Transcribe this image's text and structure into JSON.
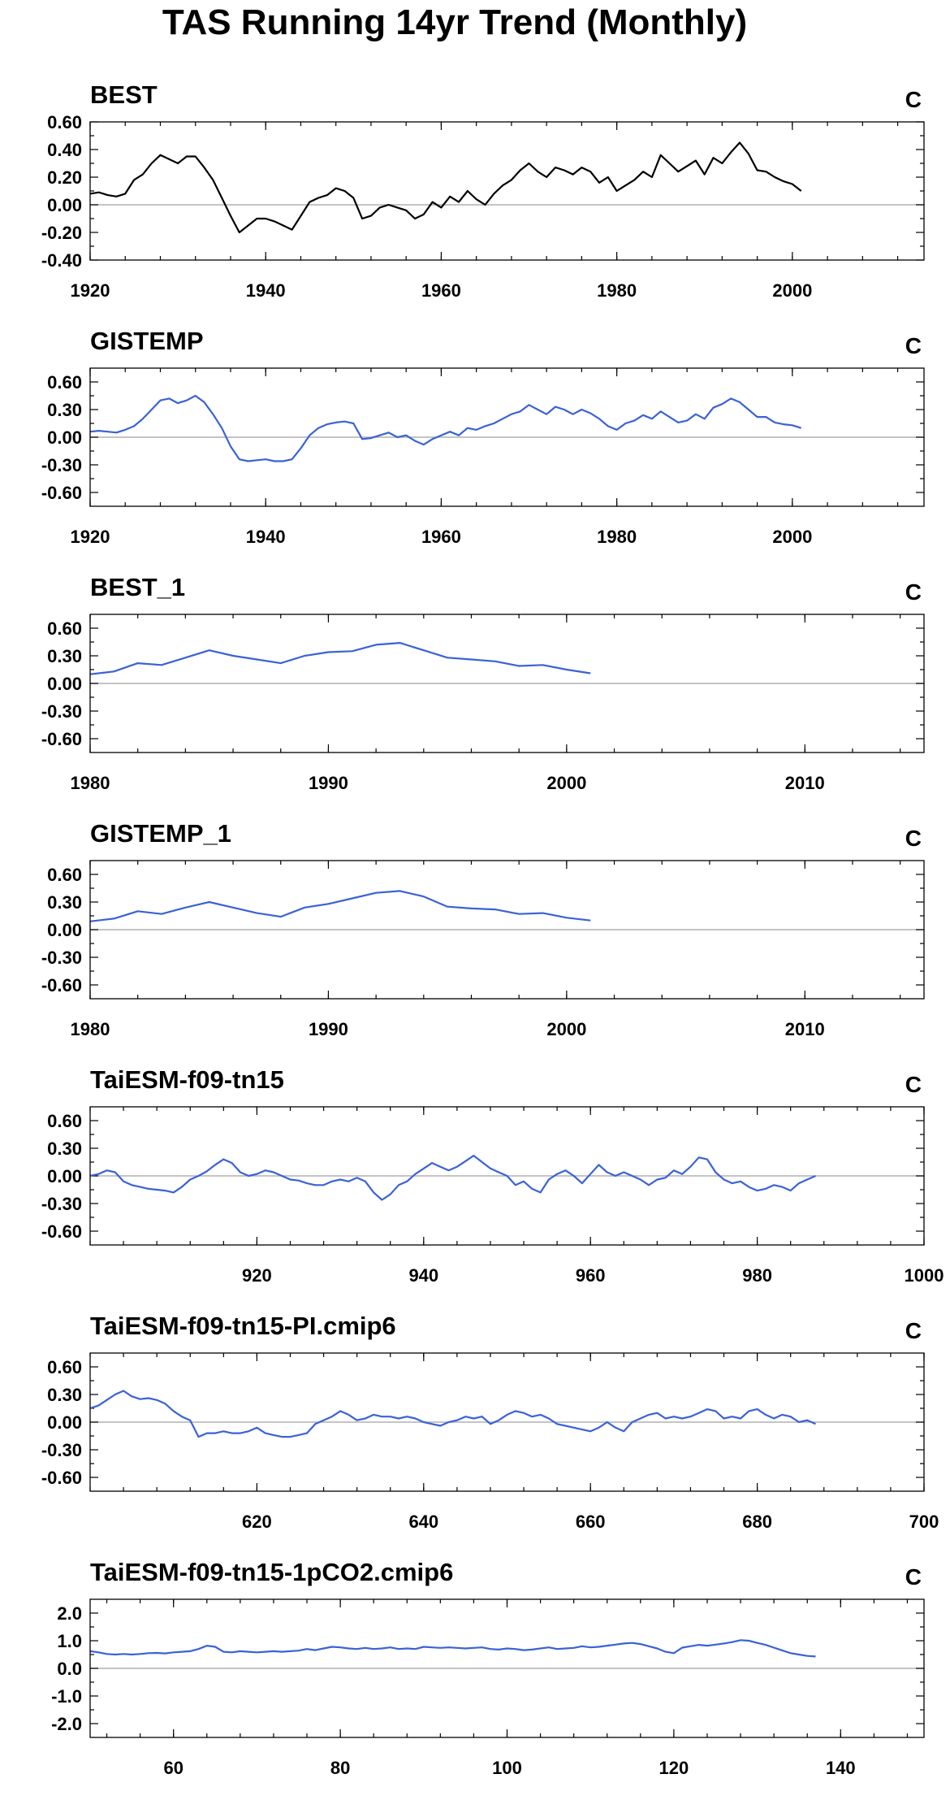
{
  "figure": {
    "title": "TAS Running 14yr Trend (Monthly)"
  },
  "chart_data": [
    {
      "type": "line",
      "title": "BEST",
      "units": "C",
      "color": "#000000",
      "xlim": [
        1920,
        2015
      ],
      "xticks": [
        1920,
        1940,
        1960,
        1980,
        2000
      ],
      "ylim": [
        -0.4,
        0.6
      ],
      "yticks": [
        0.6,
        0.4,
        0.2,
        0.0,
        -0.2,
        -0.4
      ],
      "ytick_labels": [
        "0.60",
        "0.40",
        "0.20",
        "0.00",
        "-0.20",
        "-0.40"
      ],
      "x": [
        1920,
        1921,
        1922,
        1923,
        1924,
        1925,
        1926,
        1927,
        1928,
        1929,
        1930,
        1931,
        1932,
        1933,
        1934,
        1935,
        1936,
        1937,
        1938,
        1939,
        1940,
        1941,
        1942,
        1943,
        1944,
        1945,
        1946,
        1947,
        1948,
        1949,
        1950,
        1951,
        1952,
        1953,
        1954,
        1955,
        1956,
        1957,
        1958,
        1959,
        1960,
        1961,
        1962,
        1963,
        1964,
        1965,
        1966,
        1967,
        1968,
        1969,
        1970,
        1971,
        1972,
        1973,
        1974,
        1975,
        1976,
        1977,
        1978,
        1979,
        1980,
        1981,
        1982,
        1983,
        1984,
        1985,
        1986,
        1987,
        1988,
        1989,
        1990,
        1991,
        1992,
        1993,
        1994,
        1995,
        1996,
        1997,
        1998,
        1999,
        2000,
        2001
      ],
      "values": [
        0.08,
        0.09,
        0.07,
        0.06,
        0.08,
        0.18,
        0.22,
        0.3,
        0.36,
        0.33,
        0.3,
        0.35,
        0.35,
        0.27,
        0.18,
        0.05,
        -0.08,
        -0.2,
        -0.15,
        -0.1,
        -0.1,
        -0.12,
        -0.15,
        -0.18,
        -0.08,
        0.02,
        0.05,
        0.07,
        0.12,
        0.1,
        0.05,
        -0.1,
        -0.08,
        -0.02,
        0.0,
        -0.02,
        -0.04,
        -0.1,
        -0.07,
        0.02,
        -0.02,
        0.06,
        0.02,
        0.1,
        0.04,
        0.0,
        0.08,
        0.14,
        0.18,
        0.25,
        0.3,
        0.24,
        0.2,
        0.27,
        0.25,
        0.22,
        0.27,
        0.24,
        0.16,
        0.2,
        0.1,
        0.14,
        0.18,
        0.24,
        0.2,
        0.36,
        0.3,
        0.24,
        0.28,
        0.32,
        0.22,
        0.34,
        0.3,
        0.38,
        0.45,
        0.37,
        0.25,
        0.24,
        0.2,
        0.17,
        0.15,
        0.1
      ]
    },
    {
      "type": "line",
      "title": "GISTEMP",
      "units": "C",
      "color": "#3a62d6",
      "xlim": [
        1920,
        2015
      ],
      "xticks": [
        1920,
        1940,
        1960,
        1980,
        2000
      ],
      "ylim": [
        -0.75,
        0.75
      ],
      "yticks": [
        0.6,
        0.3,
        0.0,
        -0.3,
        -0.6
      ],
      "ytick_labels": [
        "0.60",
        "0.30",
        "0.00",
        "-0.30",
        "-0.60"
      ],
      "x": [
        1920,
        1921,
        1922,
        1923,
        1924,
        1925,
        1926,
        1927,
        1928,
        1929,
        1930,
        1931,
        1932,
        1933,
        1934,
        1935,
        1936,
        1937,
        1938,
        1939,
        1940,
        1941,
        1942,
        1943,
        1944,
        1945,
        1946,
        1947,
        1948,
        1949,
        1950,
        1951,
        1952,
        1953,
        1954,
        1955,
        1956,
        1957,
        1958,
        1959,
        1960,
        1961,
        1962,
        1963,
        1964,
        1965,
        1966,
        1967,
        1968,
        1969,
        1970,
        1971,
        1972,
        1973,
        1974,
        1975,
        1976,
        1977,
        1978,
        1979,
        1980,
        1981,
        1982,
        1983,
        1984,
        1985,
        1986,
        1987,
        1988,
        1989,
        1990,
        1991,
        1992,
        1993,
        1994,
        1995,
        1996,
        1997,
        1998,
        1999,
        2000,
        2001
      ],
      "values": [
        0.06,
        0.07,
        0.06,
        0.05,
        0.08,
        0.12,
        0.2,
        0.3,
        0.4,
        0.42,
        0.37,
        0.4,
        0.45,
        0.38,
        0.25,
        0.1,
        -0.1,
        -0.24,
        -0.26,
        -0.25,
        -0.24,
        -0.26,
        -0.26,
        -0.24,
        -0.12,
        0.02,
        0.1,
        0.14,
        0.16,
        0.17,
        0.15,
        -0.02,
        -0.01,
        0.02,
        0.05,
        0.0,
        0.02,
        -0.04,
        -0.08,
        -0.02,
        0.02,
        0.06,
        0.02,
        0.1,
        0.08,
        0.12,
        0.15,
        0.2,
        0.25,
        0.28,
        0.35,
        0.3,
        0.25,
        0.33,
        0.3,
        0.25,
        0.3,
        0.26,
        0.2,
        0.12,
        0.08,
        0.15,
        0.18,
        0.24,
        0.2,
        0.28,
        0.22,
        0.16,
        0.18,
        0.25,
        0.2,
        0.32,
        0.36,
        0.42,
        0.38,
        0.3,
        0.22,
        0.22,
        0.16,
        0.14,
        0.13,
        0.1
      ]
    },
    {
      "type": "line",
      "title": "BEST_1",
      "units": "C",
      "color": "#3a62d6",
      "xlim": [
        1980,
        2015
      ],
      "xticks": [
        1980,
        1990,
        2000,
        2010
      ],
      "ylim": [
        -0.75,
        0.75
      ],
      "yticks": [
        0.6,
        0.3,
        0.0,
        -0.3,
        -0.6
      ],
      "ytick_labels": [
        "0.60",
        "0.30",
        "0.00",
        "-0.30",
        "-0.60"
      ],
      "x": [
        1980,
        1981,
        1982,
        1983,
        1984,
        1985,
        1986,
        1987,
        1988,
        1989,
        1990,
        1991,
        1992,
        1993,
        1994,
        1995,
        1996,
        1997,
        1998,
        1999,
        2000,
        2001
      ],
      "values": [
        0.1,
        0.13,
        0.22,
        0.2,
        0.28,
        0.36,
        0.3,
        0.26,
        0.22,
        0.3,
        0.34,
        0.35,
        0.42,
        0.44,
        0.36,
        0.28,
        0.26,
        0.24,
        0.19,
        0.2,
        0.15,
        0.11
      ]
    },
    {
      "type": "line",
      "title": "GISTEMP_1",
      "units": "C",
      "color": "#3a62d6",
      "xlim": [
        1980,
        2015
      ],
      "xticks": [
        1980,
        1990,
        2000,
        2010
      ],
      "ylim": [
        -0.75,
        0.75
      ],
      "yticks": [
        0.6,
        0.3,
        0.0,
        -0.3,
        -0.6
      ],
      "ytick_labels": [
        "0.60",
        "0.30",
        "0.00",
        "-0.30",
        "-0.60"
      ],
      "x": [
        1980,
        1981,
        1982,
        1983,
        1984,
        1985,
        1986,
        1987,
        1988,
        1989,
        1990,
        1991,
        1992,
        1993,
        1994,
        1995,
        1996,
        1997,
        1998,
        1999,
        2000,
        2001
      ],
      "values": [
        0.09,
        0.12,
        0.2,
        0.17,
        0.24,
        0.3,
        0.24,
        0.18,
        0.14,
        0.24,
        0.28,
        0.34,
        0.4,
        0.42,
        0.36,
        0.25,
        0.23,
        0.22,
        0.17,
        0.18,
        0.13,
        0.1
      ]
    },
    {
      "type": "line",
      "title": "TaiESM-f09-tn15",
      "units": "C",
      "color": "#3a62d6",
      "xlim": [
        900,
        1000
      ],
      "xticks": [
        920,
        940,
        960,
        980,
        1000
      ],
      "ylim": [
        -0.75,
        0.75
      ],
      "yticks": [
        0.6,
        0.3,
        0.0,
        -0.3,
        -0.6
      ],
      "ytick_labels": [
        "0.60",
        "0.30",
        "0.00",
        "-0.30",
        "-0.60"
      ],
      "x": [
        900,
        901,
        902,
        903,
        904,
        905,
        906,
        907,
        908,
        909,
        910,
        911,
        912,
        913,
        914,
        915,
        916,
        917,
        918,
        919,
        920,
        921,
        922,
        923,
        924,
        925,
        926,
        927,
        928,
        929,
        930,
        931,
        932,
        933,
        934,
        935,
        936,
        937,
        938,
        939,
        940,
        941,
        942,
        943,
        944,
        945,
        946,
        947,
        948,
        949,
        950,
        951,
        952,
        953,
        954,
        955,
        956,
        957,
        958,
        959,
        960,
        961,
        962,
        963,
        964,
        965,
        966,
        967,
        968,
        969,
        970,
        971,
        972,
        973,
        974,
        975,
        976,
        977,
        978,
        979,
        980,
        981,
        982,
        983,
        984,
        985,
        986,
        987
      ],
      "values": [
        0.0,
        0.02,
        0.06,
        0.04,
        -0.06,
        -0.1,
        -0.12,
        -0.14,
        -0.15,
        -0.16,
        -0.18,
        -0.12,
        -0.04,
        0.0,
        0.05,
        0.12,
        0.18,
        0.14,
        0.04,
        0.0,
        0.02,
        0.06,
        0.04,
        0.0,
        -0.04,
        -0.05,
        -0.08,
        -0.1,
        -0.1,
        -0.06,
        -0.04,
        -0.06,
        -0.02,
        -0.06,
        -0.18,
        -0.26,
        -0.2,
        -0.1,
        -0.06,
        0.02,
        0.08,
        0.14,
        0.1,
        0.06,
        0.1,
        0.16,
        0.22,
        0.15,
        0.08,
        0.04,
        0.0,
        -0.1,
        -0.06,
        -0.14,
        -0.18,
        -0.04,
        0.02,
        0.06,
        0.0,
        -0.08,
        0.02,
        0.12,
        0.04,
        0.0,
        0.04,
        0.0,
        -0.04,
        -0.1,
        -0.04,
        -0.02,
        0.06,
        0.02,
        0.1,
        0.2,
        0.18,
        0.04,
        -0.04,
        -0.08,
        -0.06,
        -0.12,
        -0.16,
        -0.14,
        -0.1,
        -0.12,
        -0.16,
        -0.08,
        -0.04,
        0.0
      ]
    },
    {
      "type": "line",
      "title": "TaiESM-f09-tn15-PI.cmip6",
      "units": "C",
      "color": "#3a62d6",
      "xlim": [
        600,
        700
      ],
      "xticks": [
        620,
        640,
        660,
        680,
        700
      ],
      "ylim": [
        -0.75,
        0.75
      ],
      "yticks": [
        0.6,
        0.3,
        0.0,
        -0.3,
        -0.6
      ],
      "ytick_labels": [
        "0.60",
        "0.30",
        "0.00",
        "-0.30",
        "-0.60"
      ],
      "x": [
        600,
        601,
        602,
        603,
        604,
        605,
        606,
        607,
        608,
        609,
        610,
        611,
        612,
        613,
        614,
        615,
        616,
        617,
        618,
        619,
        620,
        621,
        622,
        623,
        624,
        625,
        626,
        627,
        628,
        629,
        630,
        631,
        632,
        633,
        634,
        635,
        636,
        637,
        638,
        639,
        640,
        641,
        642,
        643,
        644,
        645,
        646,
        647,
        648,
        649,
        650,
        651,
        652,
        653,
        654,
        655,
        656,
        657,
        658,
        659,
        660,
        661,
        662,
        663,
        664,
        665,
        666,
        667,
        668,
        669,
        670,
        671,
        672,
        673,
        674,
        675,
        676,
        677,
        678,
        679,
        680,
        681,
        682,
        683,
        684,
        685,
        686,
        687
      ],
      "values": [
        0.15,
        0.18,
        0.24,
        0.3,
        0.34,
        0.28,
        0.25,
        0.26,
        0.24,
        0.2,
        0.12,
        0.06,
        0.02,
        -0.16,
        -0.12,
        -0.12,
        -0.1,
        -0.12,
        -0.12,
        -0.1,
        -0.06,
        -0.12,
        -0.14,
        -0.16,
        -0.16,
        -0.14,
        -0.12,
        -0.02,
        0.02,
        0.06,
        0.12,
        0.08,
        0.02,
        0.04,
        0.08,
        0.06,
        0.06,
        0.04,
        0.06,
        0.04,
        0.0,
        -0.02,
        -0.04,
        0.0,
        0.02,
        0.06,
        0.04,
        0.06,
        -0.02,
        0.02,
        0.08,
        0.12,
        0.1,
        0.06,
        0.08,
        0.04,
        -0.02,
        -0.04,
        -0.06,
        -0.08,
        -0.1,
        -0.06,
        0.0,
        -0.06,
        -0.1,
        0.0,
        0.04,
        0.08,
        0.1,
        0.04,
        0.06,
        0.04,
        0.06,
        0.1,
        0.14,
        0.12,
        0.04,
        0.06,
        0.04,
        0.12,
        0.14,
        0.08,
        0.04,
        0.08,
        0.06,
        0.0,
        0.02,
        -0.02
      ]
    },
    {
      "type": "line",
      "title": "TaiESM-f09-tn15-1pCO2.cmip6",
      "units": "C",
      "color": "#3a62d6",
      "xlim": [
        50,
        150
      ],
      "xticks": [
        60,
        80,
        100,
        120,
        140
      ],
      "ylim": [
        -2.5,
        2.5
      ],
      "yticks": [
        2.0,
        1.0,
        0.0,
        -1.0,
        -2.0
      ],
      "ytick_labels": [
        "2.0",
        "1.0",
        "0.0",
        "-1.0",
        "-2.0"
      ],
      "x": [
        50,
        51,
        52,
        53,
        54,
        55,
        56,
        57,
        58,
        59,
        60,
        61,
        62,
        63,
        64,
        65,
        66,
        67,
        68,
        69,
        70,
        71,
        72,
        73,
        74,
        75,
        76,
        77,
        78,
        79,
        80,
        81,
        82,
        83,
        84,
        85,
        86,
        87,
        88,
        89,
        90,
        91,
        92,
        93,
        94,
        95,
        96,
        97,
        98,
        99,
        100,
        101,
        102,
        103,
        104,
        105,
        106,
        107,
        108,
        109,
        110,
        111,
        112,
        113,
        114,
        115,
        116,
        117,
        118,
        119,
        120,
        121,
        122,
        123,
        124,
        125,
        126,
        127,
        128,
        129,
        130,
        131,
        132,
        133,
        134,
        135,
        136,
        137
      ],
      "values": [
        0.62,
        0.58,
        0.52,
        0.5,
        0.52,
        0.5,
        0.52,
        0.55,
        0.56,
        0.54,
        0.58,
        0.6,
        0.62,
        0.7,
        0.82,
        0.78,
        0.6,
        0.58,
        0.62,
        0.6,
        0.58,
        0.6,
        0.62,
        0.6,
        0.62,
        0.64,
        0.7,
        0.66,
        0.72,
        0.78,
        0.76,
        0.72,
        0.7,
        0.74,
        0.7,
        0.72,
        0.76,
        0.7,
        0.72,
        0.7,
        0.78,
        0.76,
        0.74,
        0.76,
        0.74,
        0.72,
        0.74,
        0.76,
        0.7,
        0.68,
        0.72,
        0.7,
        0.66,
        0.68,
        0.72,
        0.76,
        0.7,
        0.72,
        0.74,
        0.8,
        0.76,
        0.78,
        0.82,
        0.86,
        0.9,
        0.92,
        0.88,
        0.8,
        0.72,
        0.6,
        0.55,
        0.75,
        0.8,
        0.85,
        0.82,
        0.86,
        0.9,
        0.95,
        1.02,
        1.0,
        0.92,
        0.85,
        0.75,
        0.65,
        0.55,
        0.5,
        0.45,
        0.43
      ]
    }
  ]
}
